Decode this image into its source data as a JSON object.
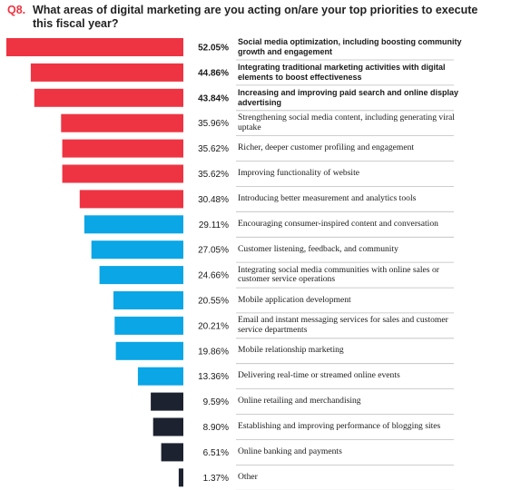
{
  "question": {
    "number": "Q8.",
    "text": "What areas of digital marketing are you acting on/are your top priorities to execute this fiscal year?"
  },
  "colors": {
    "red": "#ee3442",
    "blue": "#0aa6e6",
    "dark": "#1d2230",
    "separator": "#bdbdbd"
  },
  "chart_data": {
    "type": "bar",
    "orientation": "horizontal",
    "unit": "%",
    "xlim": [
      0,
      52.05
    ],
    "categories": [
      "Social media optimization, including boosting community growth and engagement",
      "Integrating traditional marketing activities with digital elements to boost effectiveness",
      "Increasing and improving paid search and online display advertising",
      "Strengthening social media content, including generating viral uptake",
      "Richer, deeper customer profiling and engagement",
      "Improving functionality of website",
      "Introducing better measurement and analytics tools",
      "Encouraging consumer-inspired content and conversation",
      "Customer listening, feedback, and community",
      "Integrating social media communities with online sales or customer service operations",
      "Mobile application development",
      "Email and instant messaging services for sales and customer service departments",
      "Mobile relationship marketing",
      "Delivering real-time or streamed online events",
      "Online retailing and merchandising",
      "Establishing and improving performance of blogging sites",
      "Online banking and payments",
      "Other"
    ],
    "values": [
      52.05,
      44.86,
      43.84,
      35.96,
      35.62,
      35.62,
      30.48,
      29.11,
      27.05,
      24.66,
      20.55,
      20.21,
      19.86,
      13.36,
      9.59,
      8.9,
      6.51,
      1.37
    ],
    "value_labels": [
      "52.05%",
      "44.86%",
      "43.84%",
      "35.96%",
      "35.62%",
      "35.62%",
      "30.48%",
      "29.11%",
      "27.05%",
      "24.66%",
      "20.55%",
      "20.21%",
      "19.86%",
      "13.36%",
      "9.59%",
      "8.90%",
      "6.51%",
      "1.37%"
    ],
    "bar_colors": [
      "red",
      "red",
      "red",
      "red",
      "red",
      "red",
      "red",
      "blue",
      "blue",
      "blue",
      "blue",
      "blue",
      "blue",
      "blue",
      "dark",
      "dark",
      "dark",
      "dark"
    ],
    "bold_rows": [
      true,
      true,
      true,
      false,
      false,
      false,
      false,
      false,
      false,
      false,
      false,
      false,
      false,
      false,
      false,
      false,
      false,
      false
    ]
  }
}
